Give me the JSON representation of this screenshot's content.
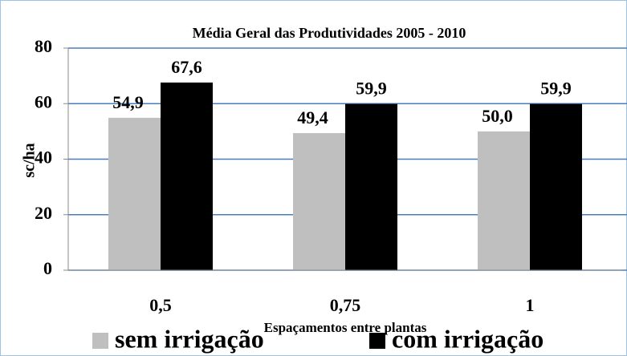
{
  "chart_data": {
    "type": "bar",
    "title": "Média Geral das Produtividades 2005 - 2010",
    "y_label": "sc/ha",
    "x_label": "Espaçamentos entre plantas",
    "categories": [
      "0,5",
      "0,75",
      "1"
    ],
    "series": [
      {
        "name": "sem irrigação",
        "color": "#bfbfbf",
        "values": [
          54.9,
          49.4,
          50.0
        ],
        "value_labels": [
          "54,9",
          "49,4",
          "50,0"
        ]
      },
      {
        "name": "com irrigação",
        "color": "#000000",
        "values": [
          67.6,
          59.9,
          59.9
        ],
        "value_labels": [
          "67,6",
          "59,9",
          "59,9"
        ]
      }
    ],
    "ylim": [
      0,
      80
    ],
    "yticks": [
      0,
      20,
      40,
      60,
      80
    ],
    "grid": true,
    "legend": "bottom"
  }
}
